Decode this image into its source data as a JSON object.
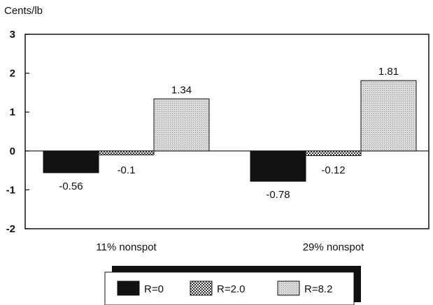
{
  "chart_data": {
    "type": "bar",
    "ylabel": "Cents/lb",
    "xlabel": "",
    "title": "",
    "ylim": [
      -2,
      3
    ],
    "yticks": [
      3,
      2,
      1,
      0,
      -1,
      -2
    ],
    "categories": [
      "11% nonspot",
      "29% nonspot"
    ],
    "series": [
      {
        "name": "R=0",
        "values": [
          -0.56,
          -0.78
        ],
        "labels": [
          "-0.56",
          "-0.78"
        ],
        "fill": "solid",
        "color": "#111111"
      },
      {
        "name": "R=2.0",
        "values": [
          -0.1,
          -0.12
        ],
        "labels": [
          "-0.1",
          "-0.12"
        ],
        "fill": "checker",
        "color": "#555555"
      },
      {
        "name": "R=8.2",
        "values": [
          1.34,
          1.81
        ],
        "labels": [
          "1.34",
          "1.81"
        ],
        "fill": "dots",
        "color": "#cfcfcf"
      }
    ],
    "legend_position": "bottom-center",
    "grid": false
  }
}
